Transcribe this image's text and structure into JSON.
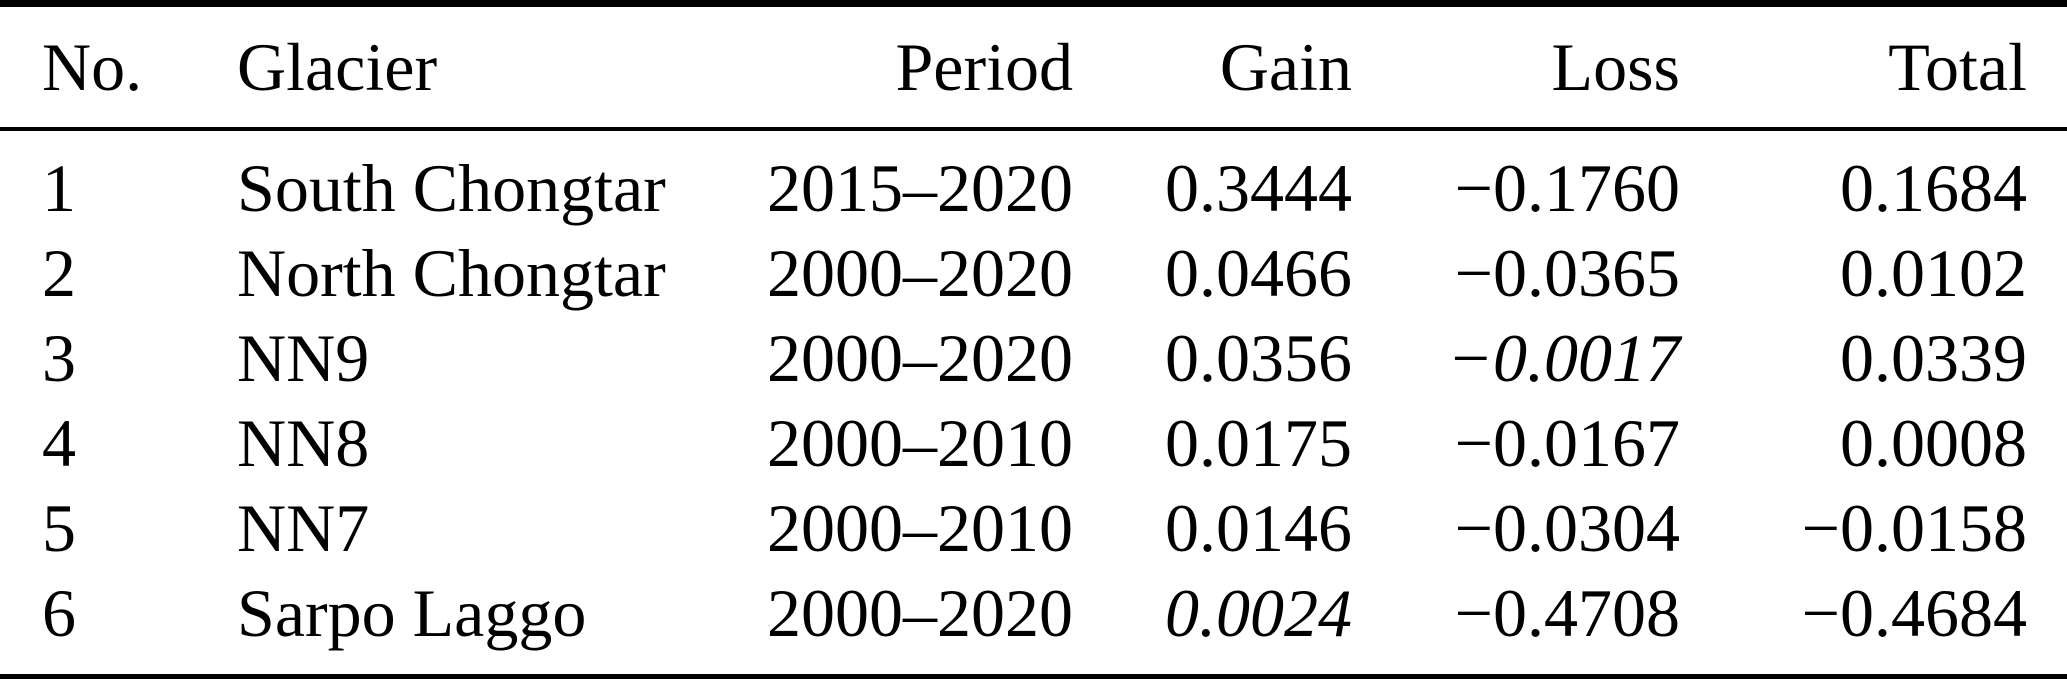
{
  "table": {
    "columns": [
      {
        "key": "no",
        "label": "No.",
        "align": "left"
      },
      {
        "key": "glacier",
        "label": "Glacier",
        "align": "left"
      },
      {
        "key": "period",
        "label": "Period",
        "align": "right"
      },
      {
        "key": "gain",
        "label": "Gain",
        "align": "right"
      },
      {
        "key": "loss",
        "label": "Loss",
        "align": "right"
      },
      {
        "key": "total",
        "label": "Total",
        "align": "right"
      }
    ],
    "rows": [
      {
        "cells": [
          {
            "text": "1"
          },
          {
            "text": "South Chongtar"
          },
          {
            "text": "2015–2020"
          },
          {
            "text": "0.3444"
          },
          {
            "text": "−0.1760"
          },
          {
            "text": "0.1684"
          }
        ]
      },
      {
        "cells": [
          {
            "text": "2"
          },
          {
            "text": "North Chongtar"
          },
          {
            "text": "2000–2020"
          },
          {
            "text": "0.0466"
          },
          {
            "text": "−0.0365"
          },
          {
            "text": "0.0102"
          }
        ]
      },
      {
        "cells": [
          {
            "text": "3"
          },
          {
            "text": "NN9"
          },
          {
            "text": "2000–2020"
          },
          {
            "text": "0.0356"
          },
          {
            "text": "−0.0017",
            "italic": true
          },
          {
            "text": "0.0339"
          }
        ]
      },
      {
        "cells": [
          {
            "text": "4"
          },
          {
            "text": "NN8"
          },
          {
            "text": "2000–2010"
          },
          {
            "text": "0.0175"
          },
          {
            "text": "−0.0167"
          },
          {
            "text": "0.0008"
          }
        ]
      },
      {
        "cells": [
          {
            "text": "5"
          },
          {
            "text": "NN7"
          },
          {
            "text": "2000–2010"
          },
          {
            "text": "0.0146"
          },
          {
            "text": "−0.0304"
          },
          {
            "text": "−0.0158"
          }
        ]
      },
      {
        "cells": [
          {
            "text": "6"
          },
          {
            "text": "Sarpo Laggo"
          },
          {
            "text": "2000–2020"
          },
          {
            "text": "0.0024",
            "italic": true
          },
          {
            "text": "−0.4708"
          },
          {
            "text": "−0.4684"
          }
        ]
      }
    ],
    "colors": {
      "text": "#000000",
      "background": "#ffffff",
      "rule": "#000000"
    }
  },
  "chart_data": {
    "type": "table",
    "title": "",
    "columns": [
      "No.",
      "Glacier",
      "Period",
      "Gain",
      "Loss",
      "Total"
    ],
    "rows": [
      [
        "1",
        "South Chongtar",
        "2015–2020",
        0.3444,
        -0.176,
        0.1684
      ],
      [
        "2",
        "North Chongtar",
        "2000–2020",
        0.0466,
        -0.0365,
        0.0102
      ],
      [
        "3",
        "NN9",
        "2000–2020",
        0.0356,
        -0.0017,
        0.0339
      ],
      [
        "4",
        "NN8",
        "2000–2010",
        0.0175,
        -0.0167,
        0.0008
      ],
      [
        "5",
        "NN7",
        "2000–2010",
        0.0146,
        -0.0304,
        -0.0158
      ],
      [
        "6",
        "Sarpo Laggo",
        "2000–2020",
        0.0024,
        -0.4708,
        -0.4684
      ]
    ],
    "italic_cells": [
      {
        "row": 3,
        "column": "Loss"
      },
      {
        "row": 6,
        "column": "Gain"
      }
    ]
  }
}
